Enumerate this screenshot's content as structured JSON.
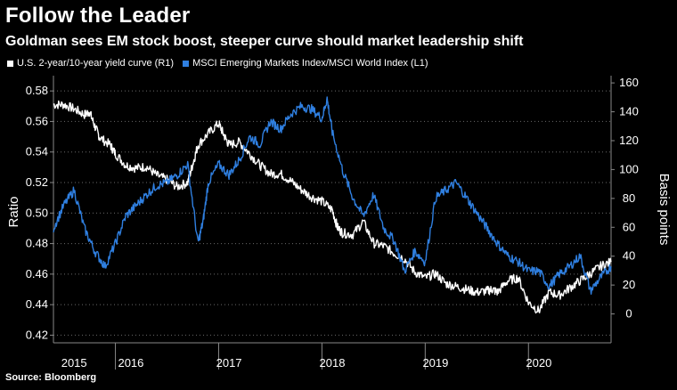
{
  "title": "Follow the Leader",
  "subtitle": "Goldman sees EM stock boost, steeper curve should market leadership shift",
  "source": "Source: Bloomberg",
  "colors": {
    "background": "#000000",
    "series_white": "#ffffff",
    "series_blue": "#2f7fe0",
    "grid": "#6a6a6a"
  },
  "chart_data": {
    "type": "line",
    "title": "Follow the Leader",
    "legend": [
      {
        "label": "U.S. 2-year/10-year yield curve (R1)",
        "color": "#ffffff"
      },
      {
        "label": "MSCI Emerging Markets Index/MSCI World Index (L1)",
        "color": "#2f7fe0"
      }
    ],
    "ylabel_left": "Ratio",
    "ylabel_right": "Basis points",
    "ylim_left": [
      0.415,
      0.59
    ],
    "ylim_right": [
      -20,
      165
    ],
    "yticks_left": [
      "0.58",
      "0.56",
      "0.54",
      "0.52",
      "0.50",
      "0.48",
      "0.46",
      "0.44",
      "0.42"
    ],
    "yticks_left_values": [
      0.58,
      0.56,
      0.54,
      0.52,
      0.5,
      0.48,
      0.46,
      0.44,
      0.42
    ],
    "yticks_right": [
      "160",
      "140",
      "120",
      "100",
      "80",
      "60",
      "40",
      "20",
      "0"
    ],
    "yticks_right_values": [
      160,
      140,
      120,
      100,
      80,
      60,
      40,
      20,
      0
    ],
    "xlim": [
      2014.9,
      2020.3
    ],
    "year_labels": [
      "2015",
      "2016",
      "2017",
      "2018",
      "2019",
      "2020"
    ],
    "year_label_positions": [
      2015.1,
      2015.65,
      2016.6,
      2017.6,
      2018.6,
      2019.6
    ],
    "year_boundaries": [
      2015.5,
      2016.5,
      2017.5,
      2018.5,
      2019.5
    ],
    "series": [
      {
        "name": "U.S. 2-year/10-year yield curve (R1)",
        "axis": "right",
        "x": [
          2014.9,
          2015.0,
          2015.1,
          2015.2,
          2015.25,
          2015.3,
          2015.35,
          2015.45,
          2015.5,
          2015.6,
          2015.7,
          2015.8,
          2015.9,
          2016.0,
          2016.1,
          2016.2,
          2016.25,
          2016.3,
          2016.4,
          2016.5,
          2016.55,
          2016.6,
          2016.7,
          2016.8,
          2016.9,
          2017.0,
          2017.1,
          2017.2,
          2017.3,
          2017.4,
          2017.5,
          2017.6,
          2017.65,
          2017.7,
          2017.8,
          2017.9,
          2018.0,
          2018.1,
          2018.2,
          2018.3,
          2018.4,
          2018.5,
          2018.6,
          2018.7,
          2018.8,
          2018.9,
          2019.0,
          2019.1,
          2019.15,
          2019.2,
          2019.3,
          2019.4,
          2019.5,
          2019.6,
          2019.7,
          2019.8,
          2019.9,
          2020.0,
          2020.1,
          2020.2,
          2020.3
        ],
        "values": [
          145,
          145,
          142,
          138,
          140,
          130,
          122,
          117,
          111,
          103,
          101,
          102,
          96,
          93,
          88,
          91,
          104,
          117,
          125,
          132,
          124,
          117,
          119,
          111,
          103,
          97,
          97,
          92,
          86,
          81,
          78,
          72,
          60,
          56,
          55,
          64,
          49,
          47,
          42,
          38,
          29,
          25,
          28,
          21,
          19,
          17,
          15,
          16,
          17,
          15,
          23,
          25,
          8,
          2,
          15,
          13,
          18,
          23,
          28,
          33,
          36
        ],
        "color": "#ffffff"
      },
      {
        "name": "MSCI Emerging Markets Index/MSCI World Index (L1)",
        "axis": "left",
        "x": [
          2014.9,
          2015.0,
          2015.1,
          2015.2,
          2015.3,
          2015.4,
          2015.5,
          2015.6,
          2015.7,
          2015.8,
          2015.9,
          2016.0,
          2016.1,
          2016.2,
          2016.3,
          2016.35,
          2016.4,
          2016.5,
          2016.6,
          2016.7,
          2016.8,
          2016.9,
          2017.0,
          2017.1,
          2017.2,
          2017.3,
          2017.4,
          2017.5,
          2017.55,
          2017.6,
          2017.7,
          2017.8,
          2017.9,
          2018.0,
          2018.1,
          2018.2,
          2018.3,
          2018.4,
          2018.5,
          2018.6,
          2018.7,
          2018.8,
          2018.9,
          2019.0,
          2019.1,
          2019.2,
          2019.3,
          2019.4,
          2019.5,
          2019.6,
          2019.7,
          2019.8,
          2019.9,
          2020.0,
          2020.1,
          2020.2,
          2020.3
        ],
        "values": [
          0.49,
          0.505,
          0.515,
          0.49,
          0.475,
          0.465,
          0.48,
          0.498,
          0.505,
          0.512,
          0.518,
          0.52,
          0.525,
          0.532,
          0.48,
          0.495,
          0.52,
          0.532,
          0.525,
          0.535,
          0.55,
          0.545,
          0.56,
          0.555,
          0.565,
          0.57,
          0.568,
          0.562,
          0.575,
          0.553,
          0.528,
          0.51,
          0.498,
          0.512,
          0.49,
          0.482,
          0.462,
          0.475,
          0.468,
          0.51,
          0.515,
          0.52,
          0.51,
          0.5,
          0.49,
          0.48,
          0.472,
          0.468,
          0.462,
          0.462,
          0.452,
          0.46,
          0.465,
          0.472,
          0.449,
          0.458,
          0.465
        ],
        "color": "#2f7fe0"
      }
    ]
  }
}
